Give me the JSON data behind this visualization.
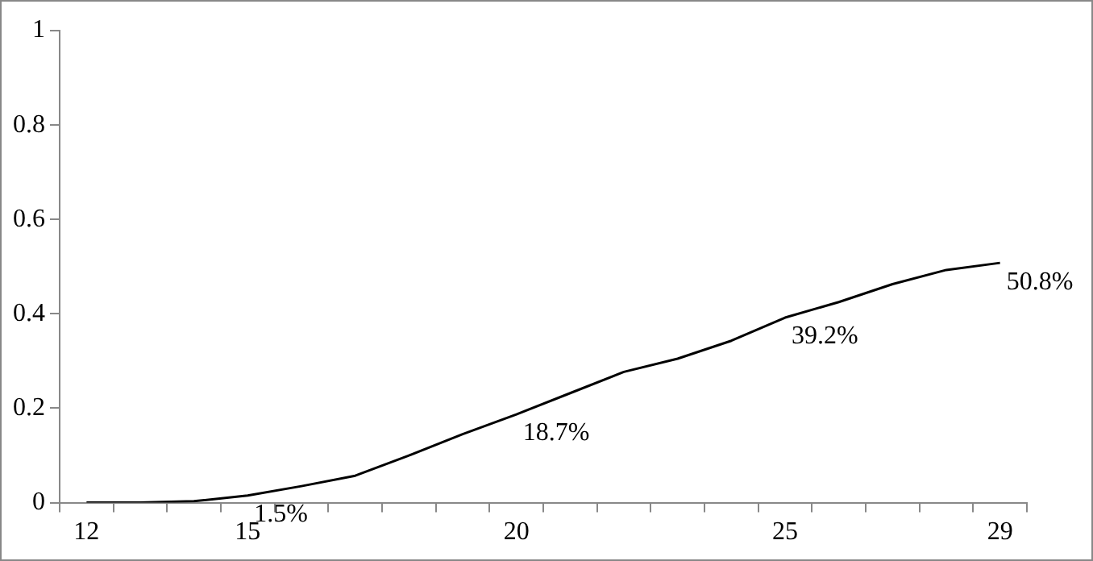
{
  "chart_data": {
    "type": "line",
    "categories": [
      "12",
      null,
      null,
      "15",
      null,
      null,
      null,
      null,
      "20",
      null,
      null,
      null,
      null,
      "25",
      null,
      null,
      null,
      "29"
    ],
    "series": [
      {
        "color": "#000000",
        "values": [
          0,
          0,
          0.003,
          0.015,
          0.035,
          0.057,
          0.1,
          0.145,
          0.187,
          0.232,
          0.277,
          0.305,
          0.343,
          0.392,
          0.425,
          0.463,
          0.493,
          0.508
        ],
        "value_labels": [
          null,
          null,
          null,
          "1.5%",
          null,
          null,
          null,
          null,
          "18.7%",
          null,
          null,
          null,
          null,
          "39.2%",
          null,
          null,
          null,
          "50.8%"
        ]
      }
    ],
    "ylim": [
      0,
      1
    ],
    "yticks": [
      0,
      0.2,
      0.4,
      0.6,
      0.8,
      1
    ],
    "grid": false,
    "legend": false,
    "marker": "none",
    "line_style": "solid"
  }
}
